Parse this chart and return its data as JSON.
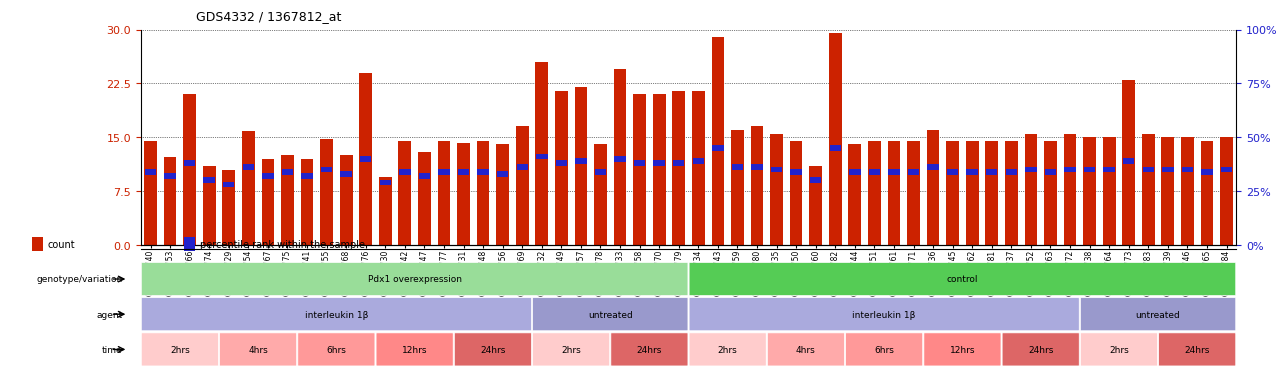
{
  "title": "GDS4332 / 1367812_at",
  "samples": [
    "GSM998740",
    "GSM998753",
    "GSM998766",
    "GSM998774",
    "GSM998729",
    "GSM998754",
    "GSM998767",
    "GSM998775",
    "GSM998741",
    "GSM998755",
    "GSM998768",
    "GSM998776",
    "GSM998730",
    "GSM998742",
    "GSM998747",
    "GSM998777",
    "GSM998731",
    "GSM998748",
    "GSM998756",
    "GSM998769",
    "GSM998732",
    "GSM998749",
    "GSM998757",
    "GSM998778",
    "GSM998733",
    "GSM998758",
    "GSM998770",
    "GSM998779",
    "GSM998734",
    "GSM998743",
    "GSM998759",
    "GSM998780",
    "GSM998735",
    "GSM998750",
    "GSM998760",
    "GSM998782",
    "GSM998744",
    "GSM998751",
    "GSM998761",
    "GSM998771",
    "GSM998736",
    "GSM998745",
    "GSM998762",
    "GSM998781",
    "GSM998737",
    "GSM998752",
    "GSM998763",
    "GSM998772",
    "GSM998738",
    "GSM998764",
    "GSM998773",
    "GSM998783",
    "GSM998739",
    "GSM998746",
    "GSM998765",
    "GSM998784"
  ],
  "count_values": [
    14.5,
    12.2,
    21.0,
    11.0,
    10.5,
    15.8,
    12.0,
    12.5,
    12.0,
    14.8,
    12.5,
    24.0,
    9.5,
    14.5,
    13.0,
    14.5,
    14.2,
    14.5,
    14.0,
    16.5,
    25.5,
    21.5,
    22.0,
    14.0,
    24.5,
    21.0,
    21.0,
    21.5,
    21.5,
    29.0,
    16.0,
    16.5,
    15.5,
    14.5,
    11.0,
    29.5,
    14.0,
    14.5,
    14.5,
    14.5,
    16.0,
    14.5,
    14.5,
    14.5,
    14.5,
    15.5,
    14.5,
    15.5,
    15.0,
    15.0,
    23.0,
    15.5,
    15.0,
    15.0,
    14.5,
    15.0
  ],
  "percentile_values": [
    34,
    32,
    38,
    30,
    28,
    36,
    32,
    34,
    32,
    35,
    33,
    40,
    29,
    34,
    32,
    34,
    34,
    34,
    33,
    36,
    41,
    38,
    39,
    34,
    40,
    38,
    38,
    38,
    39,
    45,
    36,
    36,
    35,
    34,
    30,
    45,
    34,
    34,
    34,
    34,
    36,
    34,
    34,
    34,
    34,
    35,
    34,
    35,
    35,
    35,
    39,
    35,
    35,
    35,
    34,
    35
  ],
  "ylim_left": [
    0,
    30
  ],
  "ylim_right": [
    0,
    100
  ],
  "yticks_left": [
    0,
    7.5,
    15,
    22.5,
    30
  ],
  "yticks_right": [
    0,
    25,
    50,
    75,
    100
  ],
  "bar_color": "#CC2200",
  "blue_color": "#2222CC",
  "grid_color": "#888888",
  "annotation_rows": [
    {
      "label": "genotype/variation",
      "segments": [
        {
          "text": "Pdx1 overexpression",
          "start": 0,
          "end": 28,
          "color": "#99DD99"
        },
        {
          "text": "control",
          "start": 28,
          "end": 56,
          "color": "#55CC55"
        }
      ]
    },
    {
      "label": "agent",
      "segments": [
        {
          "text": "interleukin 1β",
          "start": 0,
          "end": 20,
          "color": "#AAAADD"
        },
        {
          "text": "untreated",
          "start": 20,
          "end": 28,
          "color": "#9999CC"
        },
        {
          "text": "interleukin 1β",
          "start": 28,
          "end": 48,
          "color": "#AAAADD"
        },
        {
          "text": "untreated",
          "start": 48,
          "end": 56,
          "color": "#9999CC"
        }
      ]
    },
    {
      "label": "time",
      "segments": [
        {
          "text": "2hrs",
          "start": 0,
          "end": 4,
          "color": "#FFCCCC"
        },
        {
          "text": "4hrs",
          "start": 4,
          "end": 8,
          "color": "#FFAAAA"
        },
        {
          "text": "6hrs",
          "start": 8,
          "end": 12,
          "color": "#FF9999"
        },
        {
          "text": "12hrs",
          "start": 12,
          "end": 16,
          "color": "#FF8888"
        },
        {
          "text": "24hrs",
          "start": 16,
          "end": 20,
          "color": "#DD6666"
        },
        {
          "text": "2hrs",
          "start": 20,
          "end": 24,
          "color": "#FFCCCC"
        },
        {
          "text": "24hrs",
          "start": 24,
          "end": 28,
          "color": "#DD6666"
        },
        {
          "text": "2hrs",
          "start": 28,
          "end": 32,
          "color": "#FFCCCC"
        },
        {
          "text": "4hrs",
          "start": 32,
          "end": 36,
          "color": "#FFAAAA"
        },
        {
          "text": "6hrs",
          "start": 36,
          "end": 40,
          "color": "#FF9999"
        },
        {
          "text": "12hrs",
          "start": 40,
          "end": 44,
          "color": "#FF8888"
        },
        {
          "text": "24hrs",
          "start": 44,
          "end": 48,
          "color": "#DD6666"
        },
        {
          "text": "2hrs",
          "start": 48,
          "end": 52,
          "color": "#FFCCCC"
        },
        {
          "text": "24hrs",
          "start": 52,
          "end": 56,
          "color": "#DD6666"
        }
      ]
    }
  ],
  "legend_items": [
    {
      "label": "count",
      "color": "#CC2200"
    },
    {
      "label": "percentile rank within the sample",
      "color": "#2222CC"
    }
  ]
}
